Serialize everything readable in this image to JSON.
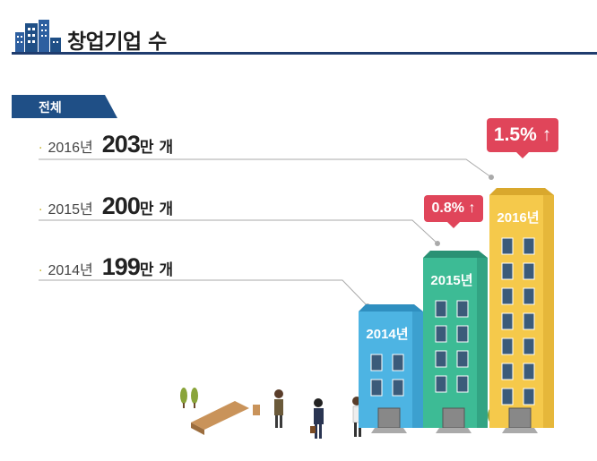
{
  "header": {
    "title": "창업기업 수",
    "icon": "building-icon"
  },
  "category": "전체",
  "colors": {
    "navy": "#1f3c6e",
    "badge": "#e0455a",
    "c2014": "#4db4e3",
    "c2015": "#3dbb95",
    "c2016": "#f5c94b"
  },
  "chart_data": {
    "type": "bar",
    "title": "창업기업 수",
    "categories": [
      "2014년",
      "2015년",
      "2016년"
    ],
    "values": [
      199,
      200,
      203
    ],
    "unit": "만 개",
    "growth": [
      null,
      "0.8%",
      "1.5%"
    ],
    "rows": [
      {
        "year": "2016년",
        "value": "203",
        "unit": "만",
        "suffix": "개"
      },
      {
        "year": "2015년",
        "value": "200",
        "unit": "만",
        "suffix": "개"
      },
      {
        "year": "2014년",
        "value": "199",
        "unit": "만",
        "suffix": "개"
      }
    ],
    "badges": [
      "1.5%",
      "0.8%"
    ]
  }
}
